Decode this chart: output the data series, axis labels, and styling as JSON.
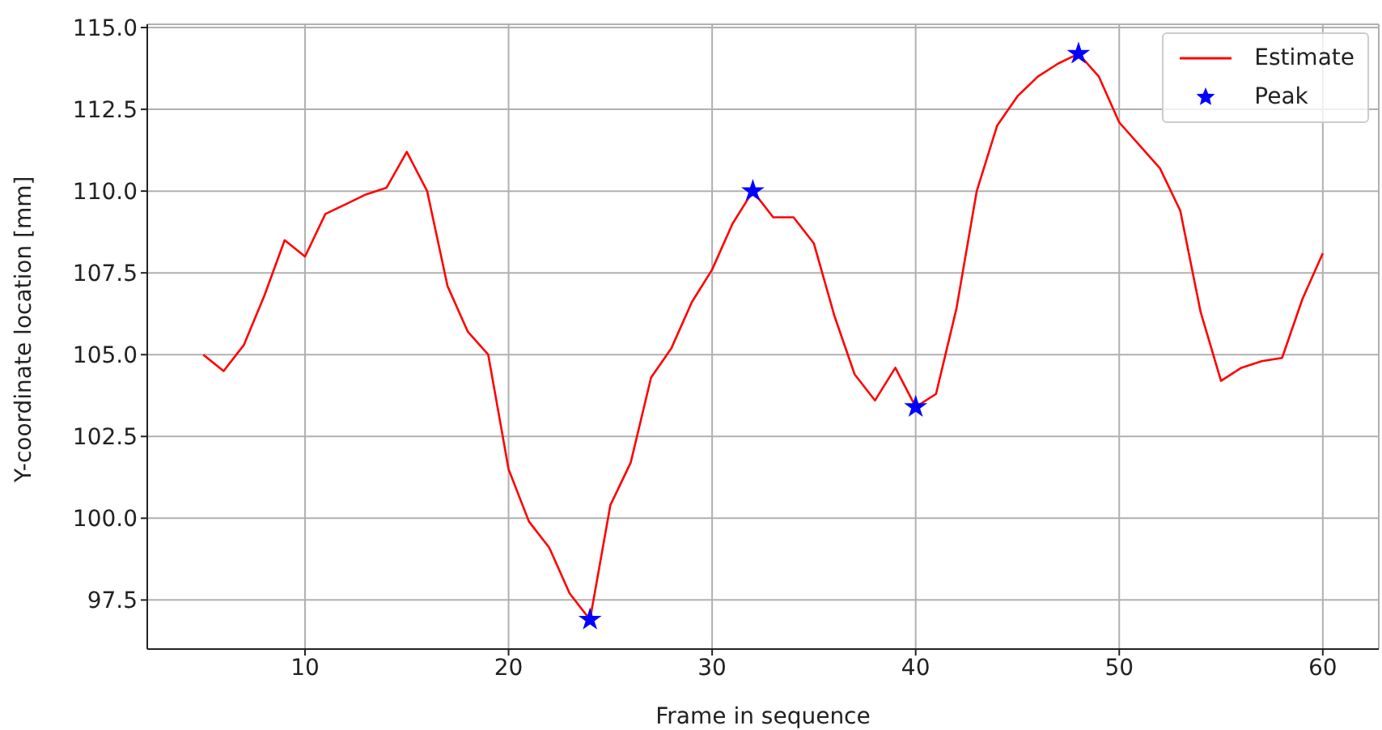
{
  "chart_data": {
    "type": "line",
    "xlabel": "Frame in sequence",
    "ylabel": "Y-coordinate location [mm]",
    "xlim": [
      2.25,
      62.75
    ],
    "xticks": [
      10,
      20,
      30,
      40,
      50,
      60
    ],
    "ylim": [
      96.0,
      115.1
    ],
    "yticks": [
      {
        "value": 97.5,
        "label": "97.5"
      },
      {
        "value": 100,
        "label": "100.0"
      },
      {
        "value": 102.5,
        "label": "102.5"
      },
      {
        "value": 105,
        "label": "105.0"
      },
      {
        "value": 107.5,
        "label": "107.5"
      },
      {
        "value": 110,
        "label": "110.0"
      },
      {
        "value": 112.5,
        "label": "112.5"
      },
      {
        "value": 115,
        "label": "115.0"
      }
    ],
    "grid": true,
    "legend": "top right",
    "line_style": "solid",
    "series": [
      {
        "name": "Estimate",
        "color": "#ff0000",
        "x": [
          5,
          6,
          7,
          8,
          9,
          10,
          11,
          12,
          13,
          14,
          15,
          16,
          17,
          18,
          19,
          20,
          21,
          22,
          23,
          24,
          25,
          26,
          27,
          28,
          29,
          30,
          31,
          32,
          33,
          34,
          35,
          36,
          37,
          38,
          39,
          40,
          41,
          42,
          43,
          44,
          45,
          46,
          47,
          48,
          49,
          50,
          51,
          52,
          53,
          54,
          55,
          56,
          57,
          58,
          59,
          60
        ],
        "values": [
          105.0,
          104.5,
          105.3,
          106.8,
          108.5,
          108.0,
          109.3,
          109.6,
          109.9,
          110.1,
          111.2,
          110.0,
          107.1,
          105.7,
          105.0,
          101.5,
          99.9,
          99.1,
          97.7,
          96.9,
          100.4,
          101.7,
          104.3,
          105.2,
          106.6,
          107.6,
          109.0,
          110.0,
          109.2,
          109.2,
          108.4,
          106.2,
          104.4,
          103.6,
          104.6,
          103.4,
          103.8,
          106.4,
          110.0,
          112.0,
          112.9,
          113.5,
          113.9,
          114.2,
          113.5,
          112.1,
          111.4,
          110.7,
          109.4,
          106.3,
          104.2,
          104.6,
          104.8,
          104.9,
          106.7,
          108.1
        ]
      },
      {
        "name": "Peak",
        "type": "scatter",
        "marker": "star",
        "color": "#0000ff",
        "x": [
          24,
          32,
          40,
          48
        ],
        "values": [
          96.9,
          110.0,
          103.4,
          114.2
        ]
      }
    ]
  }
}
